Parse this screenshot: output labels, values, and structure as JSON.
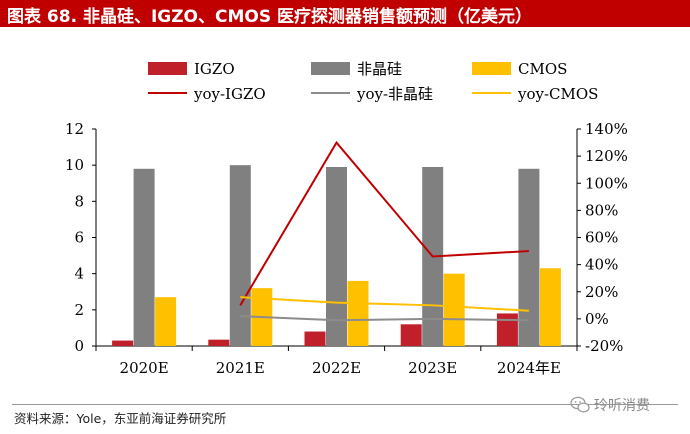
{
  "title": "图表 68. 非晶硅、IGZO、CMOS 医疗探测器销售额预测（亿美元）",
  "source": "资料来源：Yole，东亚前海证券研究所",
  "watermark": "玲听消费",
  "colors": {
    "title_bg": "#c00000",
    "igzo": "#c0202a",
    "amorphous": "#808080",
    "cmos": "#ffc000",
    "yoy_igzo": "#c00000",
    "yoy_amorphous": "#8c8c8c",
    "yoy_cmos": "#ffc000"
  },
  "chart_data": {
    "type": "bar",
    "title": "非晶硅、IGZO、CMOS 医疗探测器销售额预测（亿美元）",
    "categories": [
      "2020E",
      "2021E",
      "2022E",
      "2023E",
      "2024年E"
    ],
    "series": [
      {
        "name": "IGZO",
        "kind": "bar",
        "axis": "left",
        "color": "#c0202a",
        "values": [
          0.3,
          0.35,
          0.8,
          1.2,
          1.8
        ]
      },
      {
        "name": "非晶硅",
        "kind": "bar",
        "axis": "left",
        "color": "#808080",
        "values": [
          9.8,
          10.0,
          9.9,
          9.9,
          9.8
        ]
      },
      {
        "name": "CMOS",
        "kind": "bar",
        "axis": "left",
        "color": "#ffc000",
        "values": [
          2.7,
          3.2,
          3.6,
          4.0,
          4.3
        ]
      },
      {
        "name": "yoy-IGZO",
        "kind": "line",
        "axis": "right",
        "color": "#c00000",
        "values": [
          null,
          0.1,
          1.3,
          0.46,
          0.5
        ]
      },
      {
        "name": "yoy-非晶硅",
        "kind": "line",
        "axis": "right",
        "color": "#8c8c8c",
        "values": [
          null,
          0.02,
          -0.01,
          0.0,
          -0.01
        ]
      },
      {
        "name": "yoy-CMOS",
        "kind": "line",
        "axis": "right",
        "color": "#ffc000",
        "values": [
          null,
          0.16,
          0.12,
          0.1,
          0.06
        ]
      }
    ],
    "left_axis": {
      "min": 0,
      "max": 12,
      "ticks": [
        "0",
        "2",
        "4",
        "6",
        "8",
        "10",
        "12"
      ]
    },
    "right_axis": {
      "min": -0.2,
      "max": 1.4,
      "ticks": [
        "-20%",
        "0%",
        "20%",
        "40%",
        "60%",
        "80%",
        "100%",
        "120%",
        "140%"
      ]
    },
    "legend_position": "top",
    "grid": false
  }
}
